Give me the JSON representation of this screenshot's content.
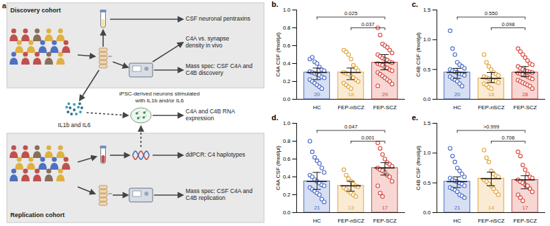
{
  "diagram": {
    "label": "a.",
    "discovery": {
      "title": "Discovery cohort",
      "pentraxins": "CSF neuronal pentraxins",
      "synapse": "C4A vs. synapse density in vivo",
      "mass_spec": "Mass spec: CSF C4A and C4B discovery"
    },
    "cytokines": "IL1b and IL6",
    "neurons": "iPSC-derived neurons stimulated with IL1b and/or IL6",
    "rna": "C4A and C4B RNA expression",
    "replication": {
      "title": "Replication cohort",
      "ddpcr": "ddPCR: C4 haplotypes",
      "mass_spec": "Mass spec: CSF C4A and C4B replication"
    }
  },
  "chart_data": [
    {
      "type": "bar",
      "title": "b.",
      "y_label": "C4A CSF (fmol/µl)",
      "categories": [
        "HC",
        "FEP-nSCZ",
        "FEP-SCZ"
      ],
      "colors": [
        "#4a6cc8",
        "#e3a43c",
        "#d8473b"
      ],
      "values": [
        0.3,
        0.3,
        0.41
      ],
      "error_low": [
        0.22,
        0.22,
        0.33
      ],
      "error_high": [
        0.35,
        0.35,
        0.5
      ],
      "n": [
        20,
        18,
        29
      ],
      "points": [
        [
          0.45,
          0.47,
          0.42,
          0.4,
          0.36,
          0.33,
          0.32,
          0.31,
          0.3,
          0.29,
          0.28,
          0.27,
          0.25,
          0.24,
          0.22,
          0.2,
          0.18,
          0.16,
          0.14,
          0.12
        ],
        [
          0.55,
          0.53,
          0.5,
          0.45,
          0.38,
          0.35,
          0.32,
          0.3,
          0.29,
          0.28,
          0.26,
          0.24,
          0.22,
          0.2,
          0.18,
          0.16,
          0.14,
          0.12
        ],
        [
          0.8,
          0.72,
          0.62,
          0.6,
          0.58,
          0.55,
          0.52,
          0.5,
          0.48,
          0.46,
          0.45,
          0.44,
          0.42,
          0.41,
          0.4,
          0.39,
          0.38,
          0.36,
          0.35,
          0.33,
          0.32,
          0.3,
          0.28,
          0.26,
          0.24,
          0.22,
          0.2,
          0.17,
          0.15
        ]
      ],
      "comparisons": [
        {
          "groups": [
            "HC",
            "FEP-SCZ"
          ],
          "label": "0.025"
        },
        {
          "groups": [
            "FEP-nSCZ",
            "FEP-SCZ"
          ],
          "label": "0.037"
        }
      ],
      "ylim": [
        0,
        1.0
      ],
      "yticks": [
        {
          "value": 0,
          "label": "0.0"
        },
        0.2,
        0.4,
        0.6,
        0.8,
        {
          "value": 1.0,
          "label": "1.0"
        }
      ]
    },
    {
      "type": "bar",
      "title": "c.",
      "y_label": "C4B CSF (fmol/µl)",
      "categories": [
        "HC",
        "FEP-nSCZ",
        "FEP-SCZ"
      ],
      "colors": [
        "#4a6cc8",
        "#e3a43c",
        "#d8473b"
      ],
      "values": [
        0.45,
        0.35,
        0.45
      ],
      "error_low": [
        0.35,
        0.28,
        0.38
      ],
      "error_high": [
        0.52,
        0.45,
        0.55
      ],
      "n": [
        20,
        18,
        28
      ],
      "points": [
        [
          1.15,
          0.85,
          0.75,
          0.62,
          0.58,
          0.55,
          0.52,
          0.5,
          0.48,
          0.46,
          0.45,
          0.43,
          0.42,
          0.4,
          0.38,
          0.35,
          0.33,
          0.3,
          0.26,
          0.22
        ],
        [
          0.75,
          0.62,
          0.55,
          0.5,
          0.45,
          0.42,
          0.4,
          0.38,
          0.36,
          0.35,
          0.33,
          0.31,
          0.3,
          0.28,
          0.26,
          0.24,
          0.2,
          0.18
        ],
        [
          0.85,
          0.8,
          0.75,
          0.7,
          0.65,
          0.6,
          0.58,
          0.55,
          0.52,
          0.5,
          0.48,
          0.47,
          0.46,
          0.45,
          0.44,
          0.43,
          0.42,
          0.4,
          0.38,
          0.36,
          0.34,
          0.32,
          0.3,
          0.28,
          0.26,
          0.24,
          0.22,
          0.18
        ]
      ],
      "comparisons": [
        {
          "groups": [
            "HC",
            "FEP-SCZ"
          ],
          "label": "0.550"
        },
        {
          "groups": [
            "FEP-nSCZ",
            "FEP-SCZ"
          ],
          "label": "0.098"
        }
      ],
      "ylim": [
        0,
        1.5
      ],
      "yticks": [
        {
          "value": 0,
          "label": "0.0"
        },
        0.5,
        {
          "value": 1.0,
          "label": "1.0"
        },
        1.5
      ]
    },
    {
      "type": "bar",
      "title": "d.",
      "y_label": "C4A CSF (fmol/µl)",
      "categories": [
        "HC",
        "FEP-nSCZ",
        "FEP-SCZ"
      ],
      "colors": [
        "#4a6cc8",
        "#e3a43c",
        "#d8473b"
      ],
      "values": [
        0.35,
        0.3,
        0.5
      ],
      "error_low": [
        0.26,
        0.24,
        0.42
      ],
      "error_high": [
        0.45,
        0.35,
        0.56
      ],
      "n": [
        21,
        13,
        17
      ],
      "points": [
        [
          0.8,
          0.68,
          0.62,
          0.58,
          0.55,
          0.5,
          0.45,
          0.42,
          0.4,
          0.37,
          0.35,
          0.33,
          0.31,
          0.3,
          0.28,
          0.26,
          0.24,
          0.22,
          0.2,
          0.15,
          0.12
        ],
        [
          0.48,
          0.42,
          0.38,
          0.35,
          0.32,
          0.3,
          0.29,
          0.28,
          0.26,
          0.24,
          0.22,
          0.2,
          0.18
        ],
        [
          0.78,
          0.72,
          0.65,
          0.6,
          0.56,
          0.54,
          0.52,
          0.5,
          0.48,
          0.47,
          0.45,
          0.42,
          0.4,
          0.35,
          0.3,
          0.22,
          0.18
        ]
      ],
      "comparisons": [
        {
          "groups": [
            "HC",
            "FEP-SCZ"
          ],
          "label": "0.047"
        },
        {
          "groups": [
            "FEP-nSCZ",
            "FEP-SCZ"
          ],
          "label": "0.001"
        }
      ],
      "ylim": [
        0,
        1.0
      ],
      "yticks": [
        {
          "value": 0,
          "label": "0.0"
        },
        0.2,
        0.4,
        0.6,
        0.8,
        {
          "value": 1.0,
          "label": "1.0"
        }
      ]
    },
    {
      "type": "bar",
      "title": "e.",
      "y_label": "C4B CSF (fmol/µl)",
      "categories": [
        "HC",
        "FEP-nSCZ",
        "FEP-SCZ"
      ],
      "colors": [
        "#4a6cc8",
        "#e3a43c",
        "#d8473b"
      ],
      "values": [
        0.52,
        0.57,
        0.55
      ],
      "error_low": [
        0.42,
        0.45,
        0.4
      ],
      "error_high": [
        0.6,
        0.68,
        0.62
      ],
      "n": [
        21,
        14,
        17
      ],
      "points": [
        [
          1.08,
          0.95,
          0.85,
          0.75,
          0.7,
          0.65,
          0.6,
          0.58,
          0.55,
          0.53,
          0.52,
          0.5,
          0.48,
          0.45,
          0.42,
          0.4,
          0.38,
          0.35,
          0.3,
          0.28,
          0.25
        ],
        [
          1.05,
          0.92,
          0.85,
          0.7,
          0.65,
          0.62,
          0.6,
          0.55,
          0.52,
          0.48,
          0.45,
          0.4,
          0.35,
          0.3
        ],
        [
          1.02,
          0.95,
          0.8,
          0.72,
          0.65,
          0.6,
          0.58,
          0.55,
          0.52,
          0.5,
          0.47,
          0.45,
          0.4,
          0.35,
          0.3,
          0.25,
          0.2
        ]
      ],
      "comparisons": [
        {
          "groups": [
            "HC",
            "FEP-SCZ"
          ],
          "label": ">0.999"
        },
        {
          "groups": [
            "FEP-nSCZ",
            "FEP-SCZ"
          ],
          "label": "0.706"
        }
      ],
      "ylim": [
        0,
        1.5
      ],
      "yticks": [
        {
          "value": 0,
          "label": "0.0"
        },
        0.5,
        {
          "value": 1.0,
          "label": "1.0"
        },
        1.5
      ]
    }
  ]
}
